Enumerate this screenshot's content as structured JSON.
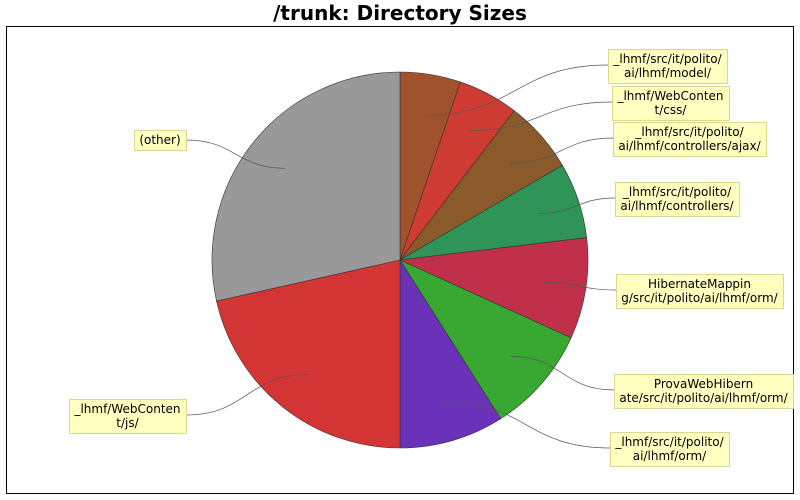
{
  "chart_data": {
    "type": "pie",
    "title": "/trunk: Directory Sizes",
    "slices": [
      {
        "label": "_lhmf/src/it/polito/ai/lhmf/model/",
        "value": 5.2,
        "color": "#A0522D"
      },
      {
        "label": "_lhmf/WebContent/css/",
        "value": 5.2,
        "color": "#CD3B32"
      },
      {
        "label": "_lhmf/src/it/polito/ai/lhmf/controllers/ajax/",
        "value": 6.2,
        "color": "#8B5A2B"
      },
      {
        "label": "_lhmf/src/it/polito/ai/lhmf/controllers/",
        "value": 6.5,
        "color": "#2E9458"
      },
      {
        "label": "HibernateMapping/src/it/polito/ai/lhmf/orm/",
        "value": 8.7,
        "color": "#C0304A"
      },
      {
        "label": "ProvaWebHibernate/src/it/polito/ai/lhmf/orm/",
        "value": 9.2,
        "color": "#38A832"
      },
      {
        "label": "_lhmf/src/it/polito/ai/lhmf/orm/",
        "value": 9.0,
        "color": "#6A32B8"
      },
      {
        "label": "_lhmf/WebContent/js/",
        "value": 21.5,
        "color": "#D33535"
      },
      {
        "label": "(other)",
        "value": 28.5,
        "color": "#999999"
      }
    ],
    "label_lines": [
      [
        "_lhmf/src/it/polito/",
        "ai/lhmf/model/"
      ],
      [
        "_lhmf/WebConten",
        "t/css/"
      ],
      [
        "_lhmf/src/it/polito/",
        "ai/lhmf/controllers/ajax/"
      ],
      [
        "_lhmf/src/it/polito/",
        "ai/lhmf/controllers/"
      ],
      [
        "HibernateMappin",
        "g/src/it/polito/ai/lhmf/orm/"
      ],
      [
        "ProvaWebHibern",
        "ate/src/it/polito/ai/lhmf/orm/"
      ],
      [
        "_lhmf/src/it/polito/",
        "ai/lhmf/orm/"
      ],
      [
        "_lhmf/WebConten",
        "t/js/"
      ],
      [
        "(other)"
      ]
    ],
    "legend": "none"
  }
}
